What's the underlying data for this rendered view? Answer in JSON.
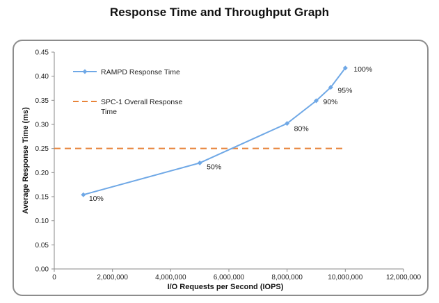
{
  "page": {
    "title": "Response Time and Throughput Graph"
  },
  "chart_data": {
    "type": "line",
    "title": "Response Time and Throughput Graph",
    "xlabel": "I/O Requests per Second (IOPS)",
    "ylabel": "Average Response Time (ms)",
    "xlim": [
      0,
      12000000
    ],
    "ylim": [
      0,
      0.45
    ],
    "x_ticks": [
      0,
      2000000,
      4000000,
      6000000,
      8000000,
      10000000,
      12000000
    ],
    "x_tick_labels": [
      "0",
      "2,000,000",
      "4,000,000",
      "6,000,000",
      "8,000,000",
      "10,000,000",
      "12,000,000"
    ],
    "y_ticks": [
      0,
      0.05,
      0.1,
      0.15,
      0.2,
      0.25,
      0.3,
      0.35,
      0.4,
      0.45
    ],
    "y_tick_labels": [
      "0.00",
      "0.05",
      "0.10",
      "0.15",
      "0.20",
      "0.25",
      "0.30",
      "0.35",
      "0.40",
      "0.45"
    ],
    "grid": false,
    "legend_position": "top-left",
    "series": [
      {
        "name": "RAMPD Response Time",
        "color": "#6fa8e6",
        "style": "solid-markers",
        "points": [
          {
            "x": 1000000,
            "y": 0.154,
            "label": "10%"
          },
          {
            "x": 5000000,
            "y": 0.22,
            "label": "50%"
          },
          {
            "x": 8000000,
            "y": 0.302,
            "label": "80%"
          },
          {
            "x": 9000000,
            "y": 0.349,
            "label": "90%"
          },
          {
            "x": 9500000,
            "y": 0.377,
            "label": "95%"
          },
          {
            "x": 10000000,
            "y": 0.417,
            "label": "100%"
          }
        ]
      },
      {
        "name": "SPC-1 Overall Response Time",
        "name_lines": [
          "SPC-1 Overall Response",
          "Time"
        ],
        "color": "#e8843a",
        "style": "dashed",
        "points": [
          {
            "x": 0,
            "y": 0.25
          },
          {
            "x": 10000000,
            "y": 0.25
          }
        ]
      }
    ]
  }
}
